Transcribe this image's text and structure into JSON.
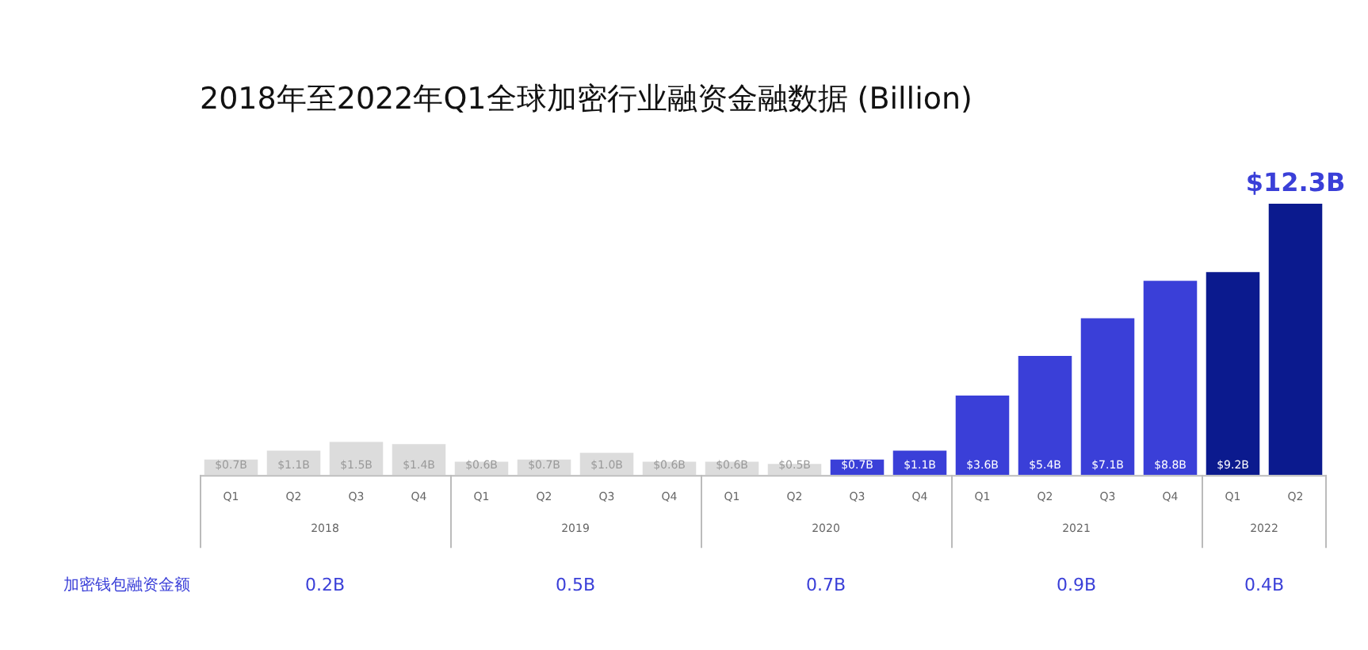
{
  "chart_data": {
    "type": "bar",
    "title": "2018年至2022年Q1全球加密行业融资金融数据 (Billion)",
    "categories": [
      "Q1",
      "Q2",
      "Q3",
      "Q4",
      "Q1",
      "Q2",
      "Q3",
      "Q4",
      "Q1",
      "Q2",
      "Q3",
      "Q4",
      "Q1",
      "Q2",
      "Q3",
      "Q4",
      "Q1",
      "Q2"
    ],
    "values": [
      0.7,
      1.1,
      1.5,
      1.4,
      0.6,
      0.7,
      1.0,
      0.6,
      0.6,
      0.5,
      0.7,
      1.1,
      3.6,
      5.4,
      7.1,
      8.8,
      9.2,
      12.3
    ],
    "value_labels": [
      "$0.7B",
      "$1.1B",
      "$1.5B",
      "$1.4B",
      "$0.6B",
      "$0.7B",
      "$1.0B",
      "$0.6B",
      "$0.6B",
      "$0.5B",
      "$0.7B",
      "$1.1B",
      "$3.6B",
      "$5.4B",
      "$7.1B",
      "$8.8B",
      "$9.2B",
      "$12.3B"
    ],
    "colors": [
      "#dcdcdc",
      "#dcdcdc",
      "#dcdcdc",
      "#dcdcdc",
      "#dcdcdc",
      "#dcdcdc",
      "#dcdcdc",
      "#dcdcdc",
      "#dcdcdc",
      "#dcdcdc",
      "#3a3fd8",
      "#3a3fd8",
      "#3a3fd8",
      "#3a3fd8",
      "#3a3fd8",
      "#3a3fd8",
      "#0b1a8e",
      "#0b1a8e"
    ],
    "annotations": [
      "2018",
      "2019",
      "2020",
      "2021",
      "2022",
      "加密钱包融资金额",
      "0.2B",
      "0.5B",
      "0.7B",
      "0.9B",
      "0.4B"
    ],
    "grid": false,
    "legend": false
  }
}
